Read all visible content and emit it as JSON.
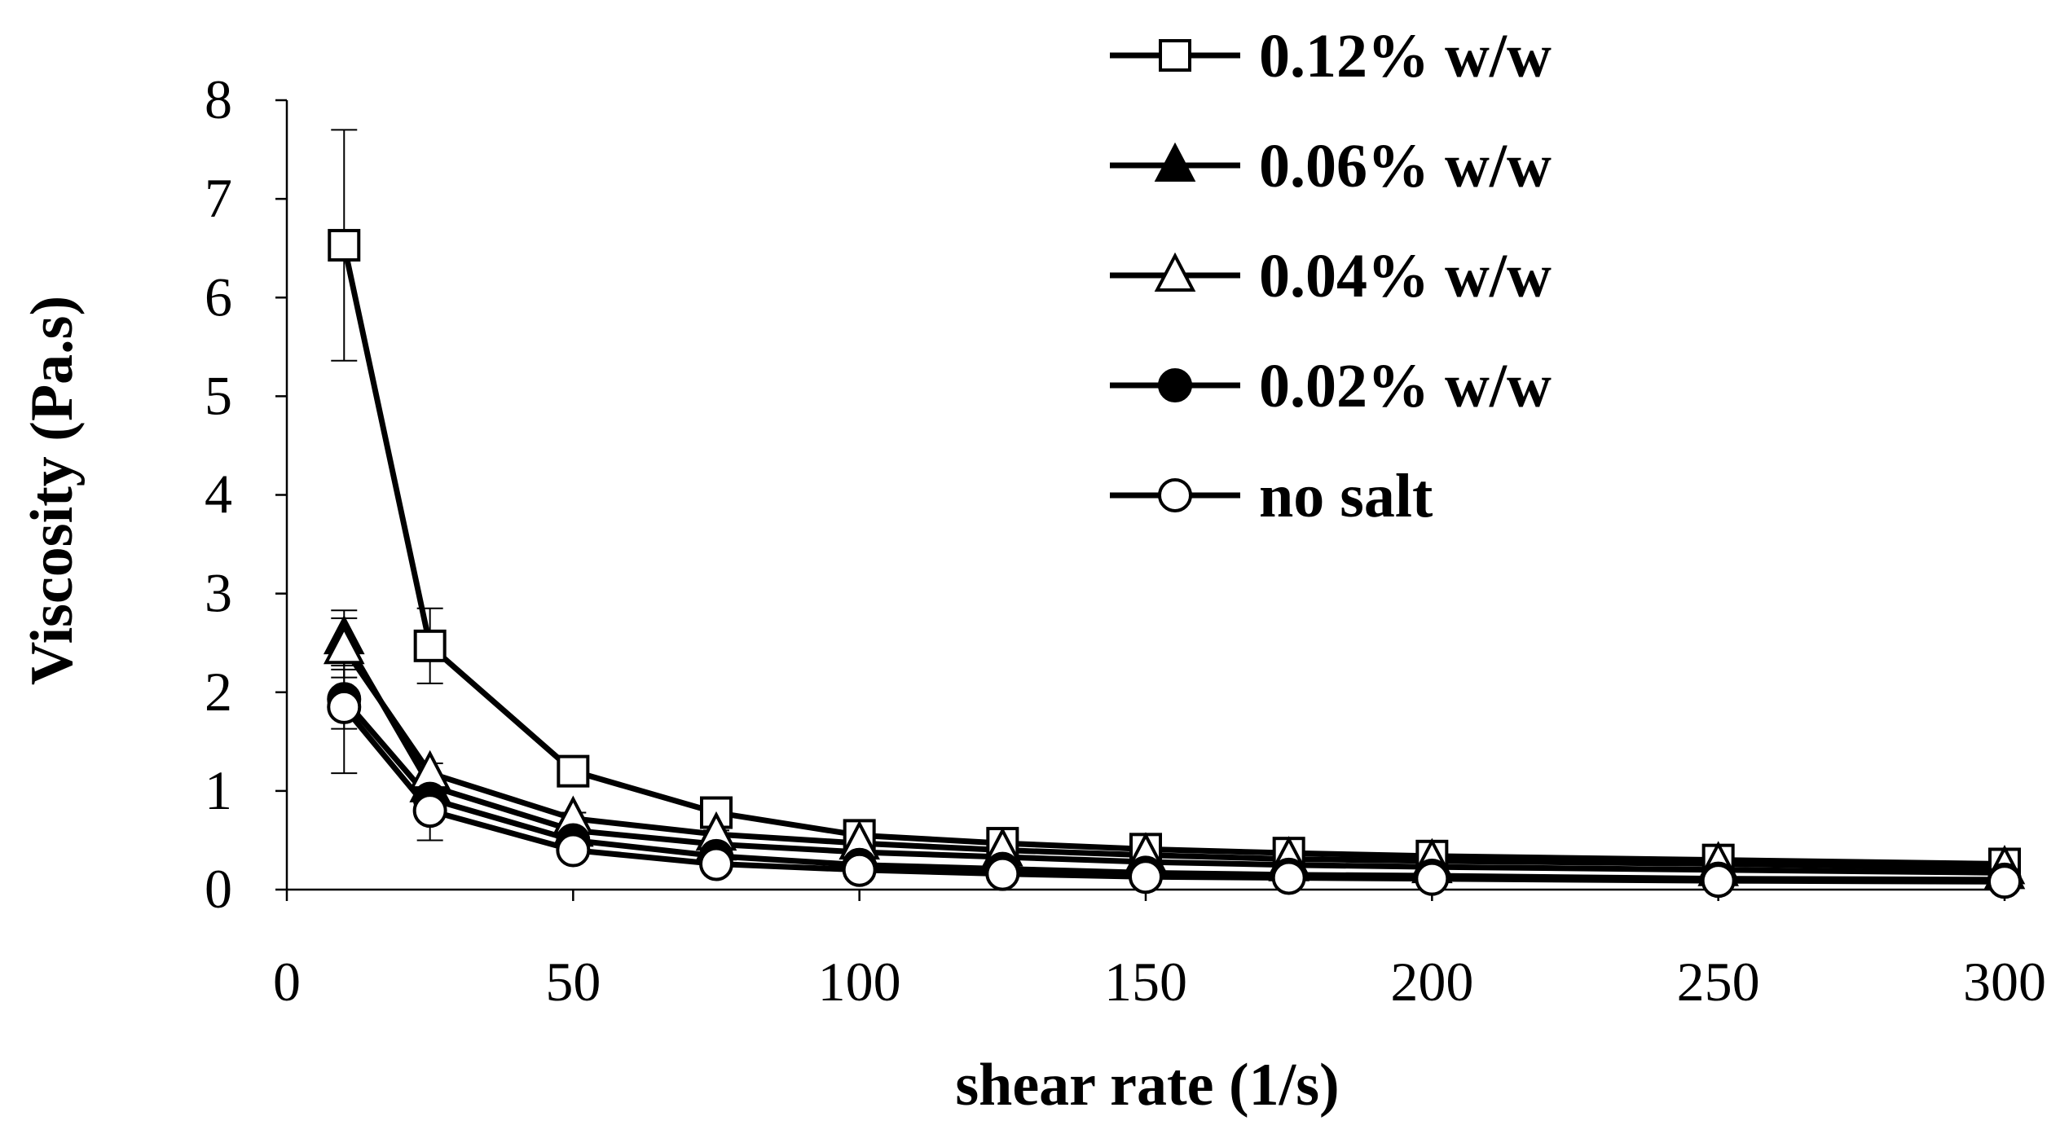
{
  "chart_data": {
    "type": "line",
    "title": "",
    "xlabel": "shear rate (1/s)",
    "ylabel": "Viscosity (Pa.s)",
    "xlim": [
      0,
      300
    ],
    "ylim": [
      0,
      8
    ],
    "xticks": [
      0,
      50,
      100,
      150,
      200,
      250,
      300
    ],
    "yticks": [
      0,
      1,
      2,
      3,
      4,
      5,
      6,
      7,
      8
    ],
    "grid": false,
    "legend_position": "top-right",
    "x": [
      10,
      25,
      50,
      75,
      100,
      125,
      150,
      175,
      200,
      250,
      300
    ],
    "series": [
      {
        "name": "0.12% w/w",
        "marker": "square-open",
        "values": [
          6.53,
          2.47,
          1.2,
          0.78,
          0.55,
          0.47,
          0.41,
          0.37,
          0.34,
          0.3,
          0.26
        ],
        "error": [
          1.17,
          0.38,
          0.1,
          0.05,
          0.03,
          0.02,
          0.02,
          0.01,
          0.01,
          0.01,
          0.01
        ]
      },
      {
        "name": "0.06% w/w",
        "marker": "triangle-filled",
        "values": [
          2.55,
          1.05,
          0.6,
          0.46,
          0.38,
          0.33,
          0.28,
          0.25,
          0.23,
          0.2,
          0.17
        ],
        "error": [
          0.28,
          0.08,
          0.05,
          0.03,
          0.02,
          0.02,
          0.01,
          0.01,
          0.01,
          0.01,
          0.01
        ]
      },
      {
        "name": "0.04% w/w",
        "marker": "triangle-open",
        "values": [
          2.45,
          1.18,
          0.72,
          0.56,
          0.47,
          0.4,
          0.35,
          0.31,
          0.29,
          0.26,
          0.22
        ],
        "error": [
          0.3,
          0.1,
          0.06,
          0.04,
          0.03,
          0.02,
          0.02,
          0.01,
          0.01,
          0.01,
          0.01
        ]
      },
      {
        "name": "0.02% w/w",
        "marker": "circle-filled",
        "values": [
          1.93,
          0.92,
          0.5,
          0.34,
          0.25,
          0.21,
          0.17,
          0.15,
          0.14,
          0.11,
          0.1
        ],
        "error": [
          0.3,
          0.12,
          0.05,
          0.03,
          0.02,
          0.02,
          0.01,
          0.01,
          0.01,
          0.01,
          0.01
        ]
      },
      {
        "name": "no salt",
        "marker": "circle-open",
        "values": [
          1.85,
          0.8,
          0.4,
          0.26,
          0.2,
          0.16,
          0.13,
          0.12,
          0.11,
          0.09,
          0.08
        ],
        "error": [
          0.67,
          0.3,
          0.06,
          0.03,
          0.02,
          0.02,
          0.01,
          0.01,
          0.01,
          0.01,
          0.01
        ]
      }
    ]
  }
}
